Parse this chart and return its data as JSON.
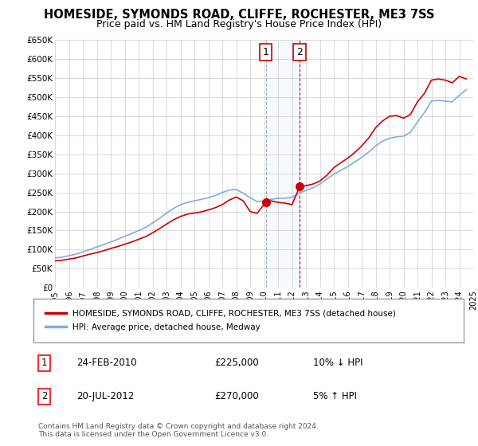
{
  "title": "HOMESIDE, SYMONDS ROAD, CLIFFE, ROCHESTER, ME3 7SS",
  "subtitle": "Price paid vs. HM Land Registry's House Price Index (HPI)",
  "title_fontsize": 10.5,
  "subtitle_fontsize": 9,
  "ylabel_ticks": [
    "£0",
    "£50K",
    "£100K",
    "£150K",
    "£200K",
    "£250K",
    "£300K",
    "£350K",
    "£400K",
    "£450K",
    "£500K",
    "£550K",
    "£600K",
    "£650K"
  ],
  "ytick_values": [
    0,
    50000,
    100000,
    150000,
    200000,
    250000,
    300000,
    350000,
    400000,
    450000,
    500000,
    550000,
    600000,
    650000
  ],
  "xlim_start": 1995,
  "xlim_end": 2025,
  "ylim_min": 0,
  "ylim_max": 650000,
  "purchase1_x": 2010.13,
  "purchase1_price": 225000,
  "purchase1_date": "24-FEB-2010",
  "purchase1_note": "10% ↓ HPI",
  "purchase2_x": 2012.55,
  "purchase2_price": 265000,
  "purchase2_date": "20-JUL-2012",
  "purchase2_note": "5% ↑ HPI",
  "line_color_property": "#cc0000",
  "line_color_hpi": "#88aadd",
  "legend_property_label": "HOMESIDE, SYMONDS ROAD, CLIFFE, ROCHESTER, ME3 7SS (detached house)",
  "legend_hpi_label": "HPI: Average price, detached house, Medway",
  "footer_text": "Contains HM Land Registry data © Crown copyright and database right 2024.\nThis data is licensed under the Open Government Licence v3.0.",
  "background_color": "#ffffff",
  "grid_color": "#cccccc",
  "highlight_box_color": "#ddeeff",
  "vline_color_1": "#aaaaaa",
  "vline_color_2": "#cc0000",
  "box_border_color": "#cc0000",
  "xtick_years": [
    1995,
    1996,
    1997,
    1998,
    1999,
    2000,
    2001,
    2002,
    2003,
    2004,
    2005,
    2006,
    2007,
    2008,
    2009,
    2010,
    2011,
    2012,
    2013,
    2014,
    2015,
    2016,
    2017,
    2018,
    2019,
    2020,
    2021,
    2022,
    2023,
    2024,
    2025
  ],
  "years_hpi": [
    1995,
    1995.5,
    1996,
    1996.5,
    1997,
    1997.5,
    1998,
    1998.5,
    1999,
    1999.5,
    2000,
    2000.5,
    2001,
    2001.5,
    2002,
    2002.5,
    2003,
    2003.5,
    2004,
    2004.5,
    2005,
    2005.5,
    2006,
    2006.5,
    2007,
    2007.5,
    2008,
    2008.5,
    2009,
    2009.5,
    2010,
    2010.5,
    2011,
    2011.5,
    2012,
    2012.5,
    2013,
    2013.5,
    2014,
    2014.5,
    2015,
    2015.5,
    2016,
    2016.5,
    2017,
    2017.5,
    2018,
    2018.5,
    2019,
    2019.5,
    2020,
    2020.5,
    2021,
    2021.5,
    2022,
    2022.5,
    2023,
    2023.5,
    2024,
    2024.5
  ],
  "hpi_values": [
    78000,
    80000,
    84000,
    88000,
    94000,
    100000,
    107000,
    113000,
    120000,
    127000,
    135000,
    142000,
    150000,
    158000,
    170000,
    182000,
    196000,
    208000,
    218000,
    224000,
    228000,
    232000,
    236000,
    242000,
    250000,
    256000,
    258000,
    248000,
    236000,
    226000,
    228000,
    232000,
    235000,
    235000,
    237000,
    248000,
    255000,
    262000,
    272000,
    285000,
    298000,
    308000,
    318000,
    330000,
    342000,
    356000,
    372000,
    385000,
    392000,
    396000,
    398000,
    408000,
    435000,
    460000,
    490000,
    492000,
    490000,
    488000,
    505000,
    520000
  ],
  "years_prop": [
    1995,
    1995.5,
    1996,
    1996.5,
    1997,
    1997.5,
    1998,
    1998.5,
    1999,
    1999.5,
    2000,
    2000.5,
    2001,
    2001.5,
    2002,
    2002.5,
    2003,
    2003.5,
    2004,
    2004.5,
    2005,
    2005.5,
    2006,
    2006.5,
    2007,
    2007.5,
    2008,
    2008.5,
    2009,
    2009.5,
    2010.13,
    2010.5,
    2011,
    2011.5,
    2012,
    2012.55,
    2013,
    2013.5,
    2014,
    2014.5,
    2015,
    2015.5,
    2016,
    2016.5,
    2017,
    2017.5,
    2018,
    2018.5,
    2019,
    2019.5,
    2020,
    2020.5,
    2021,
    2021.5,
    2022,
    2022.5,
    2023,
    2023.5,
    2024,
    2024.5
  ],
  "prop_values": [
    70000,
    72000,
    75000,
    78000,
    83000,
    88000,
    92000,
    97000,
    103000,
    108000,
    114000,
    120000,
    127000,
    134000,
    144000,
    155000,
    167000,
    178000,
    187000,
    193000,
    196000,
    199000,
    204000,
    210000,
    218000,
    230000,
    238000,
    228000,
    200000,
    195000,
    225000,
    228000,
    224000,
    222000,
    218000,
    265000,
    268000,
    272000,
    280000,
    295000,
    315000,
    328000,
    340000,
    355000,
    372000,
    393000,
    420000,
    438000,
    450000,
    452000,
    445000,
    455000,
    488000,
    510000,
    545000,
    548000,
    545000,
    538000,
    555000,
    548000
  ]
}
